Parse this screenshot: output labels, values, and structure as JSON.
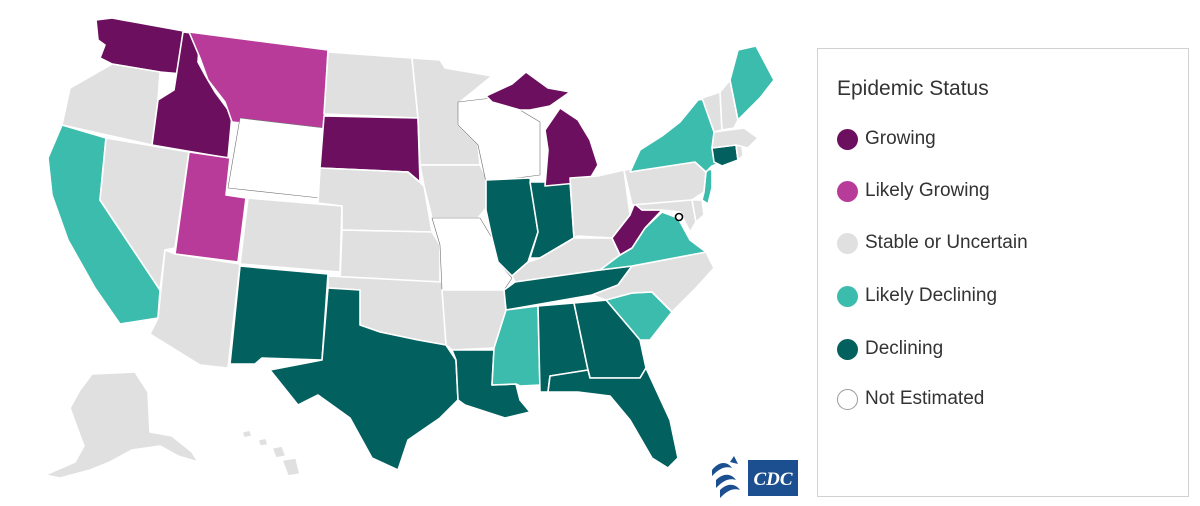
{
  "legend": {
    "title": "Epidemic Status",
    "items": [
      {
        "key": "growing",
        "label": "Growing",
        "color": "#6b0f5e"
      },
      {
        "key": "likely_growing",
        "label": "Likely Growing",
        "color": "#b83b9a"
      },
      {
        "key": "stable",
        "label": "Stable or Uncertain",
        "color": "#e0e0e0"
      },
      {
        "key": "likely_declining",
        "label": "Likely Declining",
        "color": "#3cbcad"
      },
      {
        "key": "declining",
        "label": "Declining",
        "color": "#02605f"
      },
      {
        "key": "not_estimated",
        "label": "Not Estimated",
        "color": "#ffffff"
      }
    ]
  },
  "state_status": {
    "WA": "growing",
    "ID": "growing",
    "SD": "growing",
    "MI": "growing",
    "WV": "growing",
    "MT": "likely_growing",
    "UT": "likely_growing",
    "CA": "likely_declining",
    "NY": "likely_declining",
    "ME": "likely_declining",
    "VA": "likely_declining",
    "SC": "likely_declining",
    "MS": "likely_declining",
    "NJ": "likely_declining",
    "NM": "declining",
    "TX": "declining",
    "LA": "declining",
    "IL": "declining",
    "IN": "declining",
    "TN": "declining",
    "AL": "declining",
    "GA": "declining",
    "FL": "declining",
    "CT": "declining",
    "WY": "not_estimated",
    "WI": "not_estimated",
    "MO": "not_estimated",
    "OR": "stable",
    "NV": "stable",
    "AZ": "stable",
    "CO": "stable",
    "ND": "stable",
    "NE": "stable",
    "KS": "stable",
    "OK": "stable",
    "MN": "stable",
    "IA": "stable",
    "AR": "stable",
    "KY": "stable",
    "OH": "stable",
    "PA": "stable",
    "NC": "stable",
    "MD": "stable",
    "DE": "stable",
    "VT": "stable",
    "NH": "stable",
    "MA": "stable",
    "RI": "stable",
    "AK": "stable",
    "HI": "stable"
  },
  "logo": {
    "text": "CDC",
    "icon": "hhs-eagle-icon"
  }
}
